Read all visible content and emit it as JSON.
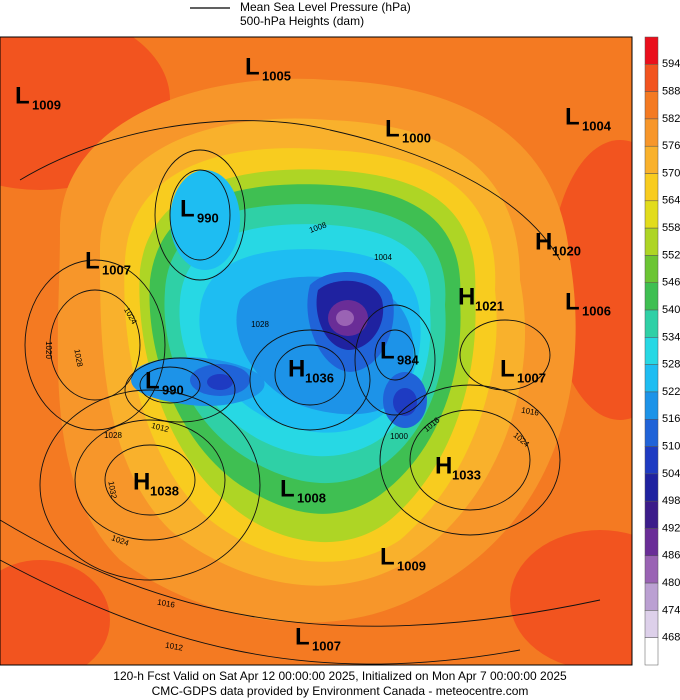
{
  "legend": {
    "line": "Mean Sea Level Pressure (hPa)",
    "fill": "500-hPa Heights (dam)"
  },
  "systems": [
    {
      "type": "L",
      "value": 1005
    },
    {
      "type": "L",
      "value": 1009
    },
    {
      "type": "L",
      "value": 1000
    },
    {
      "type": "L",
      "value": 1004
    },
    {
      "type": "L",
      "value": 990
    },
    {
      "type": "L",
      "value": 1007
    },
    {
      "type": "H",
      "value": 1020
    },
    {
      "type": "H",
      "value": 1021
    },
    {
      "type": "L",
      "value": 1006
    },
    {
      "type": "L",
      "value": 984
    },
    {
      "type": "L",
      "value": 1007
    },
    {
      "type": "H",
      "value": 1036
    },
    {
      "type": "L",
      "value": 990
    },
    {
      "type": "H",
      "value": 1038
    },
    {
      "type": "H",
      "value": 1033
    },
    {
      "type": "L",
      "value": 1008
    },
    {
      "type": "L",
      "value": 1009
    },
    {
      "type": "L",
      "value": 1007
    }
  ],
  "contour_labels": [
    1008,
    1004,
    1024,
    1020,
    1028,
    1028,
    1012,
    1028,
    1032,
    1024,
    1016,
    1012,
    1016,
    1024,
    1000,
    1016
  ],
  "colorbar": {
    "levels": [
      594,
      588,
      582,
      576,
      570,
      564,
      558,
      552,
      546,
      540,
      534,
      528,
      522,
      516,
      510,
      504,
      498,
      492,
      486,
      480,
      474,
      468
    ],
    "colors": [
      "#ea0f1c",
      "#f2541f",
      "#f47a22",
      "#f7962a",
      "#f9b12c",
      "#f8cc1f",
      "#e2dc1c",
      "#aed525",
      "#6cc534",
      "#3fbf52",
      "#2fd0a6",
      "#27d8e4",
      "#1ebdf2",
      "#1d93e8",
      "#2063d8",
      "#1e3bc2",
      "#1f22a0",
      "#3c1c8a",
      "#6a2d97",
      "#9a63b4",
      "#bba0d2",
      "#ddd0ea",
      "#ffffff"
    ]
  },
  "footer": [
    "120-h Fcst Valid on Sat Apr 12 00:00:00 2025, Initialized on Mon Apr  7 00:00:00 2025",
    "CMC-GDPS data provided by Environment Canada - meteocentre.com"
  ]
}
